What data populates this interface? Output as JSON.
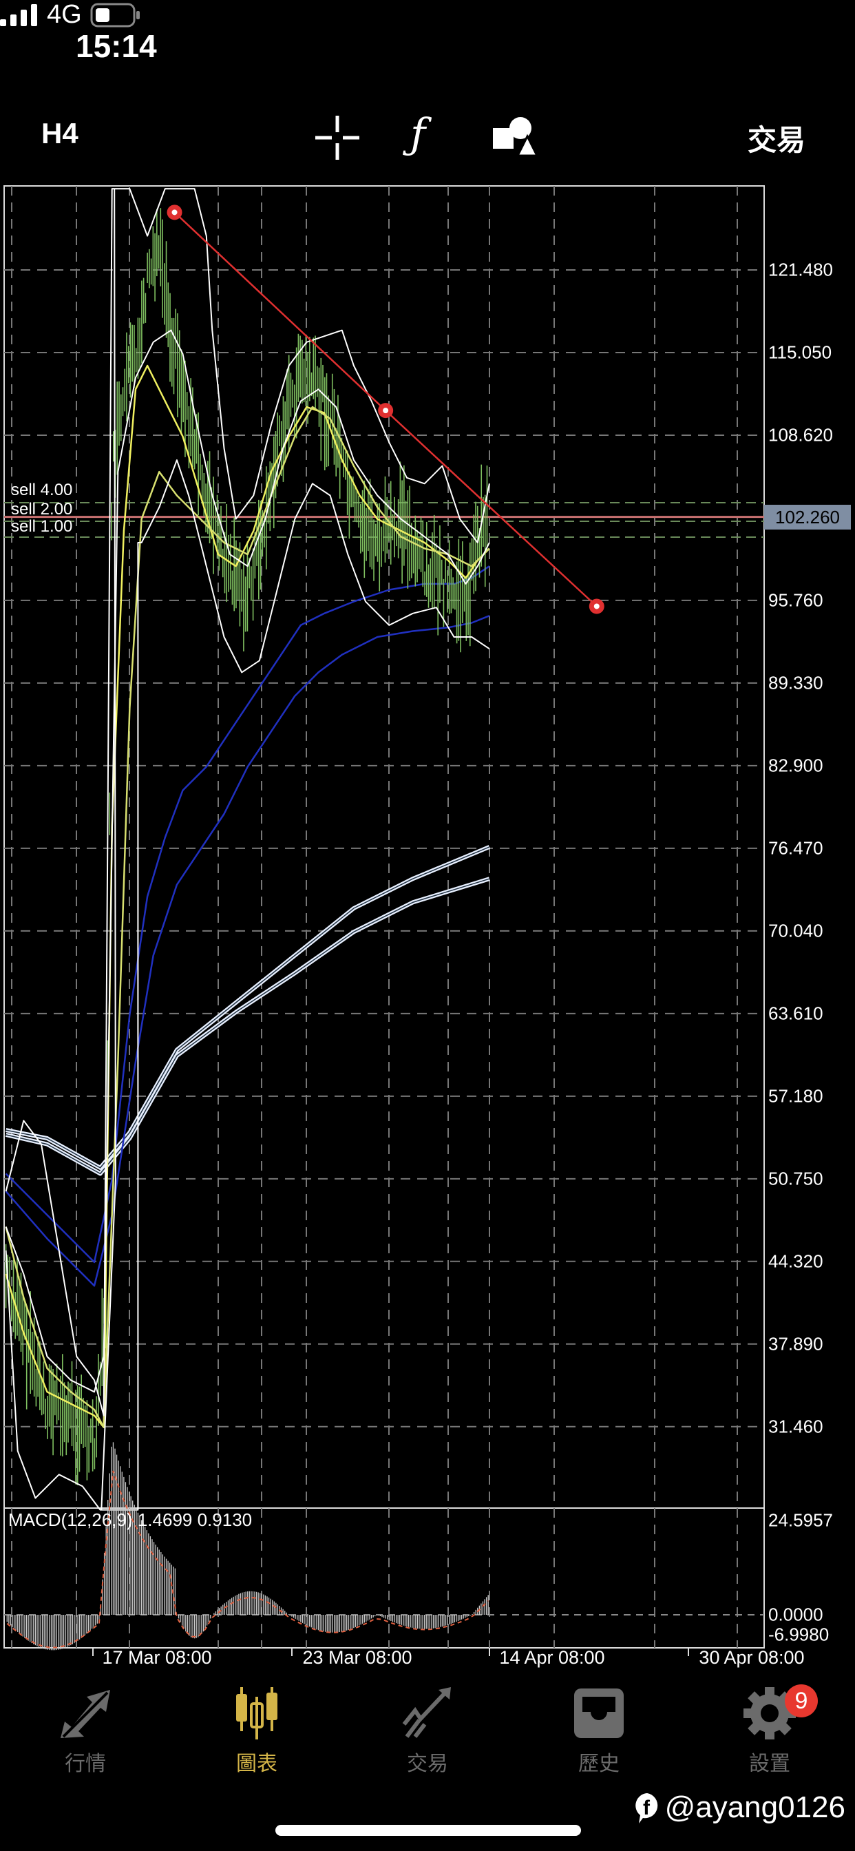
{
  "status_bar": {
    "time": "15:14",
    "network": "4G"
  },
  "toolbar": {
    "timeframe": "H4",
    "crosshair_icon": "crosshair-icon",
    "indicators_icon": "function-icon",
    "objects_icon": "shapes-icon",
    "trade_label": "交易"
  },
  "chart": {
    "price_axis": [
      "121.480",
      "115.050",
      "108.620",
      "102.260",
      "95.760",
      "89.330",
      "82.900",
      "76.470",
      "70.040",
      "63.610",
      "57.180",
      "50.750",
      "44.320",
      "37.890",
      "31.460"
    ],
    "current_price": "102.260",
    "orders": [
      "sell 4.00",
      "sell 2.00",
      "sell 1.00"
    ],
    "colors": {
      "background": "#000000",
      "trendline": "#e03030",
      "bid_line": "#c87070",
      "candles": "#7fbf60",
      "fast_ma": "#f0f060",
      "slow_ma": "#2030c0",
      "bands": "#ffffff"
    },
    "macd": {
      "label": "MACD(12,26,9) 1.4699 0.9130",
      "axis_max": "24.5957",
      "axis_zero": "0.0000",
      "axis_min": "-6.9980"
    },
    "dates": [
      "17 Mar 08:00",
      "23 Mar 08:00",
      "14 Apr 08:00",
      "30 Apr 08:00"
    ]
  },
  "nav": {
    "items": [
      {
        "label": "行情",
        "icon": "quotes-icon",
        "active": false
      },
      {
        "label": "圖表",
        "icon": "chart-icon",
        "active": true
      },
      {
        "label": "交易",
        "icon": "trade-icon",
        "active": false
      },
      {
        "label": "歷史",
        "icon": "history-icon",
        "active": false
      },
      {
        "label": "設置",
        "icon": "settings-icon",
        "active": false
      }
    ],
    "settings_badge": "9"
  },
  "watermark": "@ayang0126"
}
